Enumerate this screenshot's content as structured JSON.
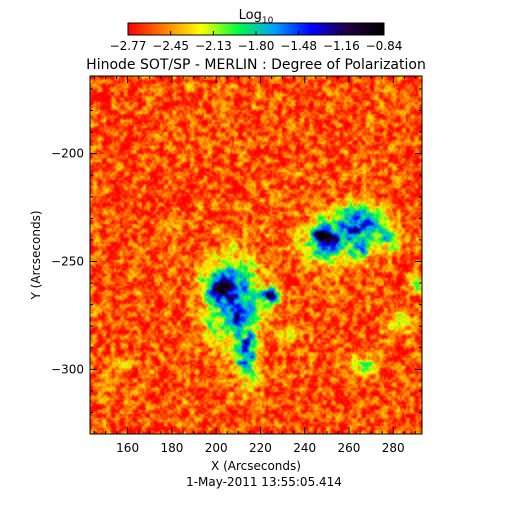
{
  "chart_data": {
    "type": "heatmap",
    "title": "Hinode SOT/SP - MERLIN : Degree of Polarization",
    "colorbar": {
      "label_base": "Log",
      "label_subscript": "10",
      "range": [
        -2.77,
        -0.84
      ],
      "ticks": [
        "-2.77",
        "-2.45",
        "-2.13",
        "-1.80",
        "-1.48",
        "-1.16",
        "-0.84"
      ],
      "colormap": [
        "#ff0000",
        "#ff8000",
        "#ffff00",
        "#00ff40",
        "#00a0ff",
        "#0000ff",
        "#200040",
        "#000000"
      ]
    },
    "xlabel": "X (Arcseconds)",
    "ylabel": "Y (Arcseconds)",
    "xlim": [
      143,
      293
    ],
    "ylim": [
      -330,
      -164
    ],
    "xticks": [
      160,
      180,
      200,
      220,
      240,
      260,
      280
    ],
    "yticks": [
      -300,
      -250,
      -200
    ],
    "timestamp": "1-May-2011 13:55:05.414",
    "background_value": -2.6,
    "features": [
      {
        "x": 207,
        "y": -268,
        "sx": 12,
        "sy": 18,
        "v": 1.15
      },
      {
        "x": 214,
        "y": -293,
        "sx": 5,
        "sy": 14,
        "v": 0.85
      },
      {
        "x": 200,
        "y": -262,
        "sx": 6,
        "sy": 5,
        "v": 0.6
      },
      {
        "x": 224,
        "y": -266,
        "sx": 4,
        "sy": 4,
        "v": 1.3
      },
      {
        "x": 250,
        "y": -241,
        "sx": 11,
        "sy": 9,
        "v": 1.1
      },
      {
        "x": 264,
        "y": -232,
        "sx": 10,
        "sy": 8,
        "v": 1.15
      },
      {
        "x": 278,
        "y": -240,
        "sx": 6,
        "sy": 6,
        "v": 0.7
      },
      {
        "x": 246,
        "y": -237,
        "sx": 3,
        "sy": 2,
        "v": 1.6
      },
      {
        "x": 265,
        "y": -245,
        "sx": 5,
        "sy": 4,
        "v": 0.6
      },
      {
        "x": 267,
        "y": -298,
        "sx": 5,
        "sy": 4,
        "v": 0.55
      },
      {
        "x": 283,
        "y": -278,
        "sx": 5,
        "sy": 6,
        "v": 0.45
      },
      {
        "x": 290,
        "y": -260,
        "sx": 3,
        "sy": 5,
        "v": 0.6
      },
      {
        "x": 158,
        "y": -298,
        "sx": 3,
        "sy": 3,
        "v": 0.45
      },
      {
        "x": 190,
        "y": -168,
        "sx": 5,
        "sy": 2,
        "v": 0.4
      },
      {
        "x": 232,
        "y": -283,
        "sx": 4,
        "sy": 3,
        "v": 0.5
      }
    ]
  }
}
